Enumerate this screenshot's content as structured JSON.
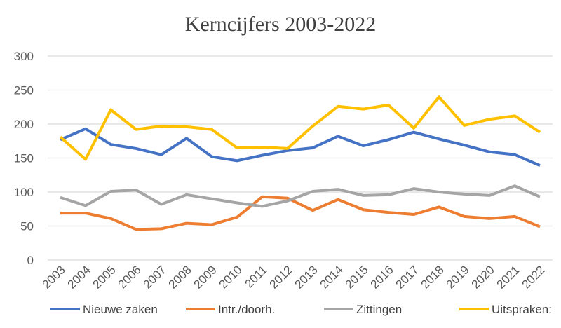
{
  "chart_data": {
    "type": "line",
    "title": "Kerncijfers 2003-2022",
    "xlabel": "",
    "ylabel": "",
    "ylim": [
      0,
      300
    ],
    "yticks": [
      0,
      50,
      100,
      150,
      200,
      250,
      300
    ],
    "grid": true,
    "legend_position": "bottom",
    "categories": [
      "2003",
      "2004",
      "2005",
      "2006",
      "2007",
      "2008",
      "2009",
      "2010",
      "2011",
      "2012",
      "2013",
      "2014",
      "2015",
      "2016",
      "2017",
      "2018",
      "2019",
      "2020",
      "2021",
      "2022"
    ],
    "series": [
      {
        "name": "Nieuwe zaken",
        "color": "#4472C4",
        "values": [
          177,
          193,
          170,
          164,
          155,
          179,
          152,
          146,
          154,
          161,
          165,
          182,
          168,
          177,
          188,
          178,
          169,
          159,
          155,
          139
        ]
      },
      {
        "name": "Intr./doorh.",
        "color": "#ED7D31",
        "values": [
          69,
          69,
          61,
          45,
          46,
          54,
          52,
          63,
          93,
          91,
          73,
          89,
          74,
          70,
          67,
          78,
          64,
          61,
          64,
          49
        ]
      },
      {
        "name": "Zittingen",
        "color": "#A5A5A5",
        "values": [
          92,
          80,
          101,
          103,
          82,
          96,
          90,
          84,
          79,
          87,
          101,
          104,
          95,
          96,
          105,
          100,
          97,
          95,
          109,
          93
        ]
      },
      {
        "name": "Uitspraken:",
        "color": "#FFC000",
        "values": [
          181,
          148,
          221,
          192,
          197,
          196,
          192,
          165,
          166,
          164,
          197,
          226,
          222,
          228,
          194,
          240,
          198,
          207,
          212,
          188
        ]
      }
    ]
  }
}
